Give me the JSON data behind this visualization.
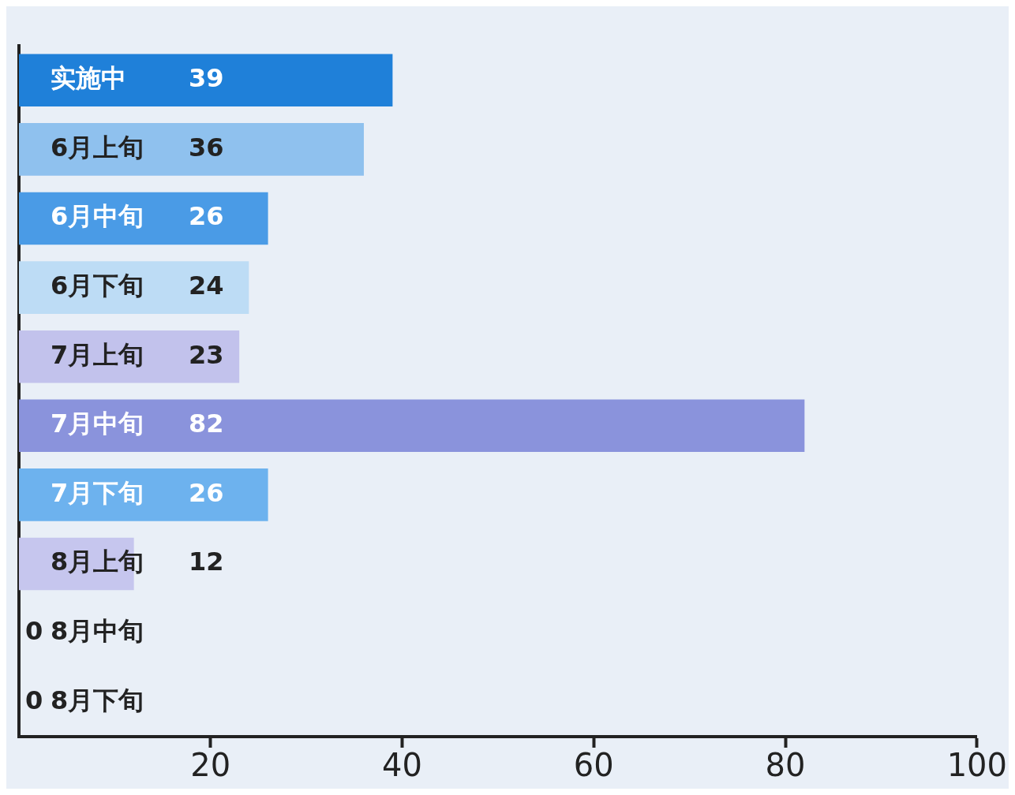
{
  "chart_data": {
    "type": "bar",
    "orientation": "horizontal",
    "categories": [
      "实施中",
      "6月上旬",
      "6月中旬",
      "6月下旬",
      "7月上旬",
      "7月中旬",
      "7月下旬",
      "8月上旬",
      "8月中旬",
      "8月下旬"
    ],
    "values": [
      39,
      36,
      26,
      24,
      23,
      82,
      26,
      12,
      0,
      0
    ],
    "colors": [
      "#1f80d9",
      "#8fc1ee",
      "#4a9be6",
      "#bddcf5",
      "#c2c2ec",
      "#8a93dc",
      "#6db2ee",
      "#c6c6ee",
      "#c6c6ee",
      "#c6c6ee"
    ],
    "xlim": [
      0,
      100
    ],
    "xticks": [
      20,
      40,
      60,
      80,
      100
    ],
    "grid": false,
    "legend": false,
    "data_labels": true
  }
}
